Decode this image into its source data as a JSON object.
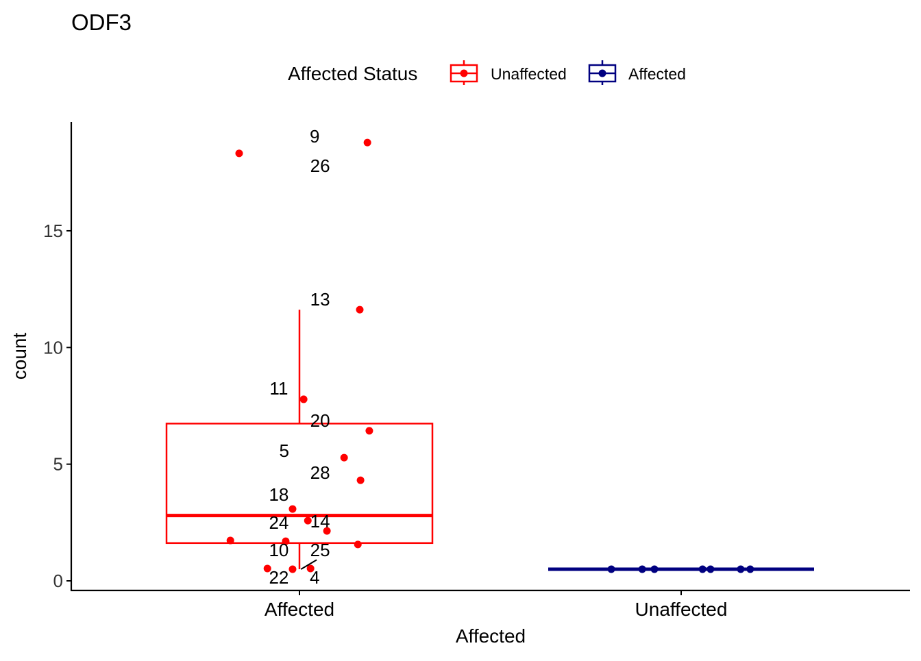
{
  "chart_data": {
    "type": "box",
    "title": "ODF3",
    "xlabel": "Affected",
    "ylabel": "count",
    "categories": [
      "Affected",
      "Unaffected"
    ],
    "ylim": [
      -0.4,
      20
    ],
    "yticks": [
      0,
      5,
      10,
      15
    ],
    "grid": false,
    "legend": {
      "title": "Affected Status",
      "position": "top",
      "entries": [
        {
          "name": "Unaffected",
          "color": "#FF0000"
        },
        {
          "name": "Affected",
          "color": "#000080"
        }
      ]
    },
    "boxes": [
      {
        "category": "Affected",
        "color": "#FF0000",
        "min": 0.5,
        "q1": 1.62,
        "median": 2.8,
        "q3": 6.74,
        "max": 11.62
      },
      {
        "category": "Unaffected",
        "color": "#000080",
        "min": 0.5,
        "q1": 0.5,
        "median": 0.5,
        "q3": 0.5,
        "max": 0.5
      }
    ],
    "points": [
      {
        "category": 0,
        "jitter": -0.158,
        "y": 18.32,
        "color": "#FF0000"
      },
      {
        "category": 0,
        "jitter": 0.178,
        "y": 18.78,
        "color": "#FF0000"
      },
      {
        "category": 0,
        "jitter": 0.158,
        "y": 11.62,
        "color": "#FF0000"
      },
      {
        "category": 0,
        "jitter": 0.011,
        "y": 7.78,
        "color": "#FF0000"
      },
      {
        "category": 0,
        "jitter": 0.183,
        "y": 6.43,
        "color": "#FF0000"
      },
      {
        "category": 0,
        "jitter": 0.117,
        "y": 5.28,
        "color": "#FF0000"
      },
      {
        "category": 0,
        "jitter": 0.16,
        "y": 4.31,
        "color": "#FF0000"
      },
      {
        "category": 0,
        "jitter": -0.018,
        "y": 3.08,
        "color": "#FF0000"
      },
      {
        "category": 0,
        "jitter": 0.022,
        "y": 2.58,
        "color": "#FF0000"
      },
      {
        "category": 0,
        "jitter": 0.072,
        "y": 2.14,
        "color": "#FF0000"
      },
      {
        "category": 0,
        "jitter": -0.181,
        "y": 1.73,
        "color": "#FF0000"
      },
      {
        "category": 0,
        "jitter": -0.036,
        "y": 1.7,
        "color": "#FF0000"
      },
      {
        "category": 0,
        "jitter": 0.153,
        "y": 1.56,
        "color": "#FF0000"
      },
      {
        "category": 0,
        "jitter": -0.084,
        "y": 0.53,
        "color": "#FF0000"
      },
      {
        "category": 0,
        "jitter": -0.018,
        "y": 0.5,
        "color": "#FF0000"
      },
      {
        "category": 0,
        "jitter": 0.029,
        "y": 0.53,
        "color": "#FF0000"
      },
      {
        "category": 1,
        "jitter": -0.183,
        "y": 0.5,
        "color": "#000080"
      },
      {
        "category": 1,
        "jitter": -0.102,
        "y": 0.5,
        "color": "#000080"
      },
      {
        "category": 1,
        "jitter": -0.07,
        "y": 0.5,
        "color": "#000080"
      },
      {
        "category": 1,
        "jitter": 0.056,
        "y": 0.5,
        "color": "#000080"
      },
      {
        "category": 1,
        "jitter": 0.077,
        "y": 0.5,
        "color": "#000080"
      },
      {
        "category": 1,
        "jitter": 0.156,
        "y": 0.5,
        "color": "#000080"
      },
      {
        "category": 1,
        "jitter": 0.181,
        "y": 0.5,
        "color": "#000080"
      }
    ],
    "labels": [
      {
        "text": "9",
        "category": 0,
        "jitter": 0.04,
        "y": 19.05
      },
      {
        "text": "26",
        "category": 0,
        "jitter": 0.054,
        "y": 17.79
      },
      {
        "text": "13",
        "category": 0,
        "jitter": 0.054,
        "y": 12.06
      },
      {
        "text": "11",
        "category": 0,
        "jitter": -0.054,
        "y": 8.25
      },
      {
        "text": "20",
        "category": 0,
        "jitter": 0.054,
        "y": 6.87
      },
      {
        "text": "5",
        "category": 0,
        "jitter": -0.04,
        "y": 5.58
      },
      {
        "text": "28",
        "category": 0,
        "jitter": 0.054,
        "y": 4.64
      },
      {
        "text": "18",
        "category": 0,
        "jitter": -0.054,
        "y": 3.7
      },
      {
        "text": "24",
        "category": 0,
        "jitter": -0.054,
        "y": 2.49
      },
      {
        "text": "14",
        "category": 0,
        "jitter": 0.054,
        "y": 2.55
      },
      {
        "text": "10",
        "category": 0,
        "jitter": -0.054,
        "y": 1.32
      },
      {
        "text": "25",
        "category": 0,
        "jitter": 0.054,
        "y": 1.32,
        "leader": [
          [
            0.004,
            0.5
          ],
          [
            0.045,
            0.9
          ]
        ]
      },
      {
        "text": "22",
        "category": 0,
        "jitter": -0.054,
        "y": 0.15
      },
      {
        "text": "4",
        "category": 0,
        "jitter": 0.04,
        "y": 0.15
      }
    ]
  }
}
